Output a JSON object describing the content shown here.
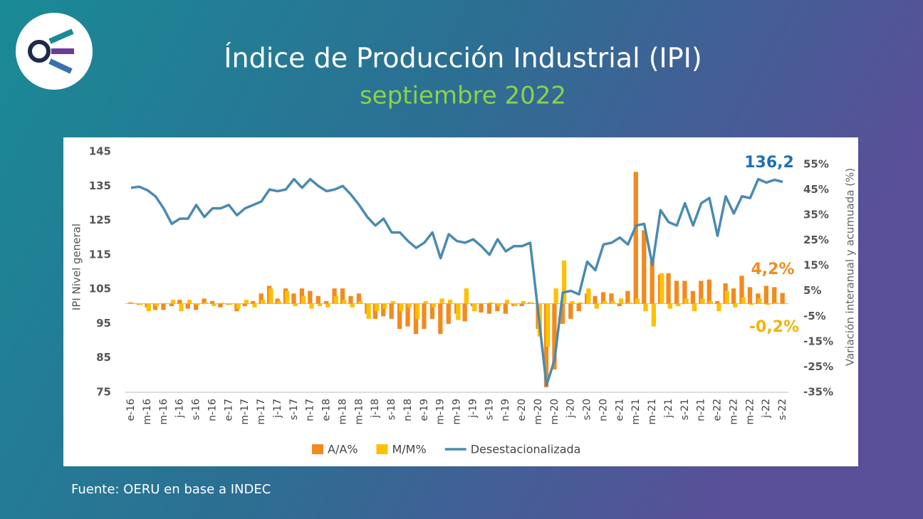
{
  "header": {
    "title": "Índice de Producción Industrial (IPI)",
    "subtitle": "septiembre 2022"
  },
  "footer": {
    "source": "Fuente: OERU en base a INDEC"
  },
  "chart_data": {
    "type": "combo",
    "y_label": "IPI Nivel general",
    "y2_label": "Variación interanual y acumuada (%)",
    "categories": [
      "e-16",
      null,
      "m-16",
      null,
      "m-16",
      null,
      "j-16",
      null,
      "s-16",
      null,
      "n-16",
      null,
      "e-17",
      null,
      "m-17",
      null,
      "m-17",
      null,
      "j-17",
      null,
      "s-17",
      null,
      "n-17",
      null,
      "e-18",
      null,
      "m-18",
      null,
      "m-18",
      null,
      "j-18",
      null,
      "s-18",
      null,
      "n-18",
      null,
      "e-19",
      null,
      "m-19",
      null,
      "m-19",
      null,
      "j-19",
      null,
      "s-19",
      null,
      "n-19",
      null,
      "e-20",
      null,
      "m-20",
      null,
      "m-20",
      null,
      "j-20",
      null,
      "s-20",
      null,
      "n-20",
      null,
      "e-21",
      null,
      "m-21",
      null,
      "m-21",
      null,
      "j-21",
      null,
      "s-21",
      null,
      "n-21",
      null,
      "e-22",
      null,
      "m-22",
      null,
      "m-22",
      null,
      "j-22",
      null,
      "s-22"
    ],
    "series": [
      {
        "name": "A/A%",
        "type": "bar",
        "axis": "y2",
        "color": "#f28a1e",
        "values": [
          0.5,
          -0.5,
          -1.5,
          -2.5,
          -2.5,
          -1,
          1.5,
          -2,
          -2.5,
          2,
          1,
          -1.5,
          -0.5,
          -3,
          -1,
          1,
          4,
          7,
          2,
          6,
          4,
          6,
          5,
          3,
          1,
          6,
          6,
          3,
          4,
          -4,
          -6,
          -5,
          -6,
          -10,
          -9,
          -12,
          -10,
          -6,
          -12,
          -8,
          -4,
          -7,
          -1,
          -3.5,
          -4,
          -3,
          -4,
          -1,
          -1,
          0.5,
          -10,
          -33,
          -26,
          -8,
          -6,
          -3,
          4,
          3,
          4.5,
          4,
          -1,
          5,
          52,
          29,
          17,
          11.5,
          12,
          9,
          9,
          5,
          9,
          9.5,
          1,
          8,
          6,
          11,
          6.5,
          4,
          7,
          6.5,
          4.2
        ]
      },
      {
        "name": "M/M%",
        "type": "bar",
        "axis": "y2",
        "color": "#ffc000",
        "values": [
          0.3,
          -0.5,
          -3,
          -1,
          0.2,
          1.5,
          -3,
          1.5,
          -0.5,
          0.5,
          -1,
          0.3,
          -0.5,
          -2,
          1.5,
          -1.5,
          1.5,
          6,
          1,
          5,
          -1,
          3,
          -2,
          -1,
          -1.5,
          3,
          1.5,
          -1.5,
          1,
          -6,
          -3,
          -2,
          1,
          -3,
          -1.5,
          -6,
          1,
          -1.5,
          2,
          1.5,
          -6.5,
          6,
          -3,
          0,
          0.5,
          -1,
          1.5,
          -1,
          1,
          0.5,
          -13,
          -17,
          6,
          17,
          1,
          0.5,
          6,
          -2,
          1,
          1,
          2,
          0.5,
          2,
          -3,
          -9,
          12,
          -2,
          -1,
          2,
          -3,
          2,
          1,
          -3,
          5,
          -1.5,
          2.5,
          -0.5,
          2,
          -0.5,
          0.5,
          -0.2
        ]
      },
      {
        "name": "Desestacionalizada",
        "type": "line",
        "color": "#4a8bb0",
        "values": [
          134.5,
          134.8,
          133.8,
          132,
          128.5,
          124,
          125.5,
          125.5,
          129.5,
          126,
          128.5,
          128.5,
          129.5,
          126.5,
          128.5,
          129.5,
          130.5,
          134,
          133.5,
          134,
          137,
          134.5,
          137,
          135,
          133.5,
          134,
          135,
          132.5,
          129.5,
          126,
          123.5,
          125.5,
          121.5,
          121.5,
          119,
          117,
          118.5,
          121.5,
          114,
          121,
          119,
          118.5,
          119.5,
          117.5,
          115,
          119.5,
          116,
          117.5,
          117.5,
          118.5,
          98,
          77,
          84.5,
          104,
          104.5,
          103.5,
          113,
          110.5,
          118,
          118.5,
          120,
          118,
          123.5,
          124,
          112,
          128,
          124.5,
          123.5,
          130,
          123.5,
          130,
          131.5,
          120.5,
          132,
          127,
          132,
          131.5,
          137,
          136,
          136.8,
          136.2
        ]
      }
    ],
    "ylim": [
      75,
      145
    ],
    "yticks": [
      75,
      85,
      95,
      105,
      115,
      125,
      135,
      145
    ],
    "y2lim": [
      -35,
      60
    ],
    "y2ticks": [
      {
        "value": -35,
        "label": "-35%"
      },
      {
        "value": -25,
        "label": "-25%"
      },
      {
        "value": -15,
        "label": "-15%"
      },
      {
        "value": -5,
        "label": "-5%"
      },
      {
        "value": 5,
        "label": "5%"
      },
      {
        "value": 15,
        "label": "15%"
      },
      {
        "value": 25,
        "label": "25%"
      },
      {
        "value": 35,
        "label": "35%"
      },
      {
        "value": 45,
        "label": "45%"
      },
      {
        "value": 55,
        "label": "55%"
      }
    ],
    "annotations": [
      "136,2",
      "4,2%",
      "-0,2%"
    ]
  }
}
